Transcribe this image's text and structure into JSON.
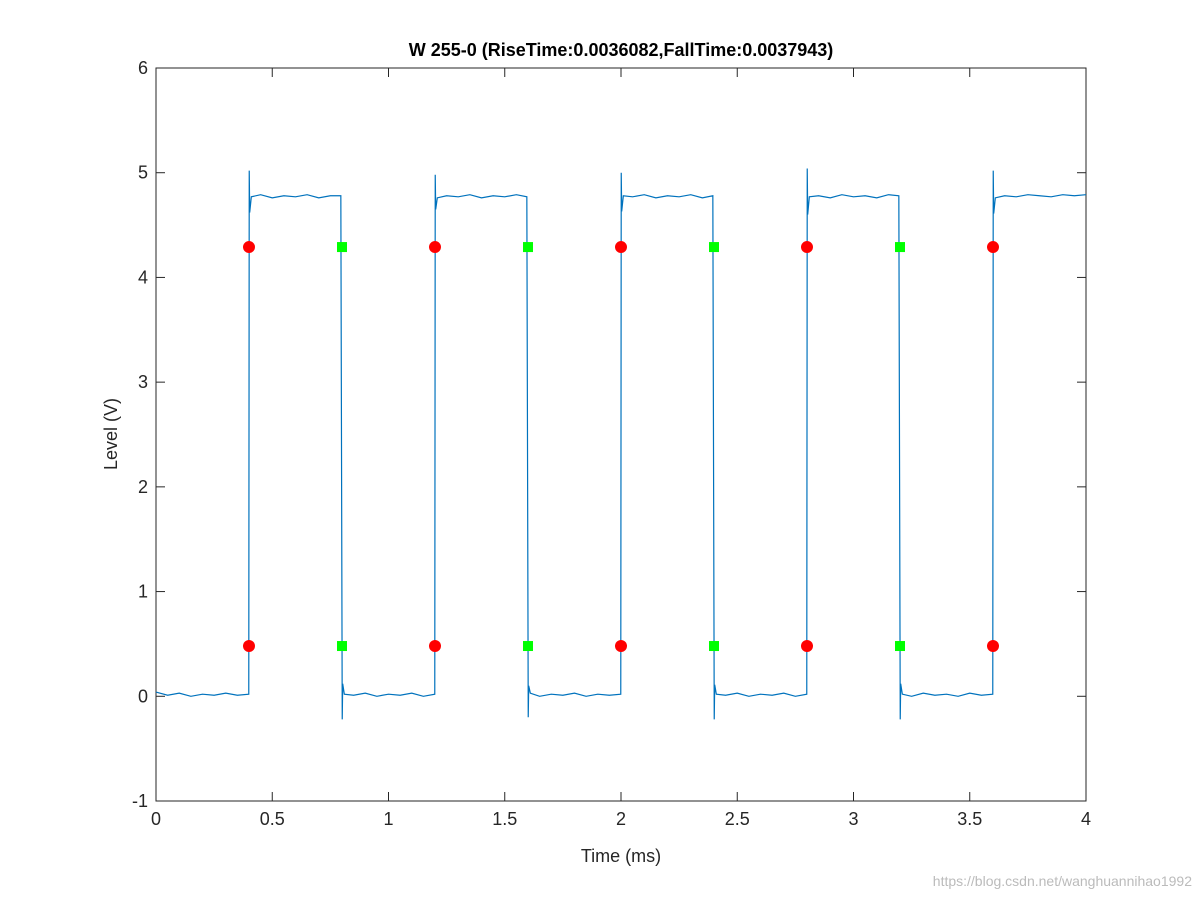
{
  "chart_data": {
    "type": "line",
    "title": "W 255-0  (RiseTime:0.0036082,FallTime:0.0037943)",
    "xlabel": "Time (ms)",
    "ylabel": "Level (V)",
    "watermark": "https://blog.csdn.net/wanghuannihao1992",
    "xlim": [
      0,
      4
    ],
    "ylim": [
      -1,
      6
    ],
    "xticks": [
      0,
      0.5,
      1,
      1.5,
      2,
      2.5,
      3,
      3.5,
      4
    ],
    "yticks": [
      -1,
      0,
      1,
      2,
      3,
      4,
      5,
      6
    ],
    "grid": false,
    "series": [
      {
        "color": "#0072bd",
        "marker": "none",
        "x": [
          0,
          0.05,
          0.1,
          0.15,
          0.2,
          0.25,
          0.3,
          0.35,
          0.399,
          0.401,
          0.403,
          0.41,
          0.45,
          0.5,
          0.55,
          0.6,
          0.65,
          0.7,
          0.75,
          0.795,
          0.801,
          0.803,
          0.81,
          0.85,
          0.9,
          0.95,
          1.0,
          1.05,
          1.1,
          1.15,
          1.199,
          1.201,
          1.203,
          1.21,
          1.25,
          1.3,
          1.35,
          1.4,
          1.45,
          1.5,
          1.55,
          1.595,
          1.601,
          1.603,
          1.61,
          1.65,
          1.7,
          1.75,
          1.8,
          1.85,
          1.9,
          1.95,
          1.999,
          2.001,
          2.003,
          2.01,
          2.05,
          2.1,
          2.15,
          2.2,
          2.25,
          2.3,
          2.35,
          2.395,
          2.401,
          2.403,
          2.41,
          2.45,
          2.5,
          2.55,
          2.6,
          2.65,
          2.7,
          2.75,
          2.799,
          2.801,
          2.803,
          2.81,
          2.85,
          2.9,
          2.95,
          3.0,
          3.05,
          3.1,
          3.15,
          3.195,
          3.201,
          3.203,
          3.21,
          3.25,
          3.3,
          3.35,
          3.4,
          3.45,
          3.5,
          3.55,
          3.599,
          3.601,
          3.603,
          3.61,
          3.65,
          3.7,
          3.75,
          3.8,
          3.85,
          3.9,
          3.95,
          4.0
        ],
        "values": [
          0.04,
          0.01,
          0.03,
          0.0,
          0.02,
          0.01,
          0.03,
          0.01,
          0.02,
          5.02,
          4.62,
          4.77,
          4.79,
          4.76,
          4.78,
          4.77,
          4.79,
          4.76,
          4.78,
          4.78,
          -0.22,
          0.12,
          0.02,
          0.01,
          0.03,
          0.0,
          0.02,
          0.01,
          0.03,
          0.0,
          0.02,
          4.98,
          4.65,
          4.76,
          4.78,
          4.77,
          4.79,
          4.76,
          4.78,
          4.77,
          4.79,
          4.77,
          -0.2,
          0.1,
          0.03,
          0.0,
          0.02,
          0.01,
          0.03,
          0.0,
          0.02,
          0.01,
          0.02,
          5.0,
          4.63,
          4.78,
          4.77,
          4.79,
          4.76,
          4.78,
          4.77,
          4.79,
          4.76,
          4.78,
          -0.22,
          0.11,
          0.02,
          0.01,
          0.03,
          0.0,
          0.02,
          0.01,
          0.03,
          0.0,
          0.02,
          5.04,
          4.6,
          4.77,
          4.78,
          4.76,
          4.79,
          4.77,
          4.78,
          4.76,
          4.79,
          4.78,
          -0.22,
          0.12,
          0.02,
          0.0,
          0.03,
          0.01,
          0.02,
          0.0,
          0.03,
          0.01,
          0.02,
          5.02,
          4.61,
          4.76,
          4.78,
          4.77,
          4.79,
          4.78,
          4.77,
          4.79,
          4.78,
          4.79
        ]
      },
      {
        "color": "#ff0000",
        "marker": "circle",
        "x": [
          0.4,
          0.4,
          1.2,
          1.2,
          2.0,
          2.0,
          2.8,
          2.8,
          3.6,
          3.6
        ],
        "values": [
          4.29,
          0.48,
          4.29,
          0.48,
          4.29,
          0.48,
          4.29,
          0.48,
          4.29,
          0.48
        ]
      },
      {
        "color": "#00ff00",
        "marker": "square",
        "x": [
          0.8,
          0.8,
          1.6,
          1.6,
          2.4,
          2.4,
          3.2,
          3.2
        ],
        "values": [
          4.29,
          0.48,
          4.29,
          0.48,
          4.29,
          0.48,
          4.29,
          0.48
        ]
      }
    ]
  }
}
